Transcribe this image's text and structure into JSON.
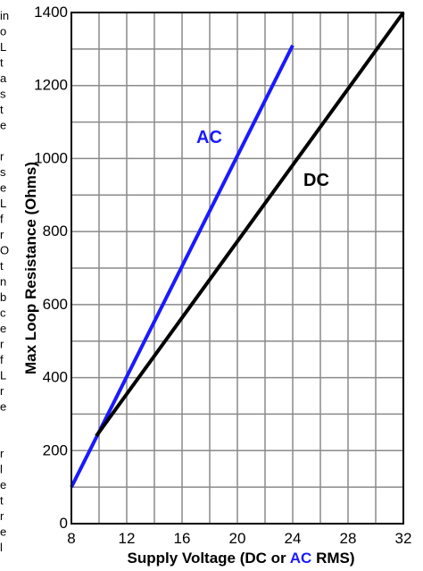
{
  "chart_data": {
    "type": "line",
    "xlabel": {
      "parts": [
        "Supply Voltage (DC or ",
        "AC",
        " RMS)"
      ]
    },
    "ylabel": "Max Loop Resistance (Ohms)",
    "xlim": [
      8,
      32
    ],
    "ylim": [
      0,
      1400
    ],
    "x_ticks": [
      8,
      12,
      16,
      20,
      24,
      28,
      32
    ],
    "y_ticks": [
      0,
      200,
      400,
      600,
      800,
      1000,
      1200,
      1400
    ],
    "x_grid_step": 2,
    "y_grid_step": 100,
    "grid": true,
    "series": [
      {
        "name": "AC",
        "color": "#1a1aff",
        "x": [
          8,
          24
        ],
        "y": [
          100,
          1310
        ]
      },
      {
        "name": "DC",
        "color": "#000000",
        "x": [
          9.8,
          32
        ],
        "y": [
          240,
          1400
        ]
      }
    ]
  },
  "margin_text": [
    "in",
    "o",
    "L",
    "t",
    "a",
    "s",
    "t",
    "e",
    "",
    "r",
    "s",
    "e",
    "L",
    "f",
    "r",
    "O",
    "t",
    "n",
    "b",
    "c",
    "e",
    "r",
    "f",
    "L",
    "r",
    "e",
    "",
    "",
    "r",
    "l",
    "e",
    "t",
    "r",
    "e",
    "l"
  ],
  "colors": {
    "ac": "#1a1aff",
    "dc": "#000000",
    "grid": "#8a8a8a"
  }
}
